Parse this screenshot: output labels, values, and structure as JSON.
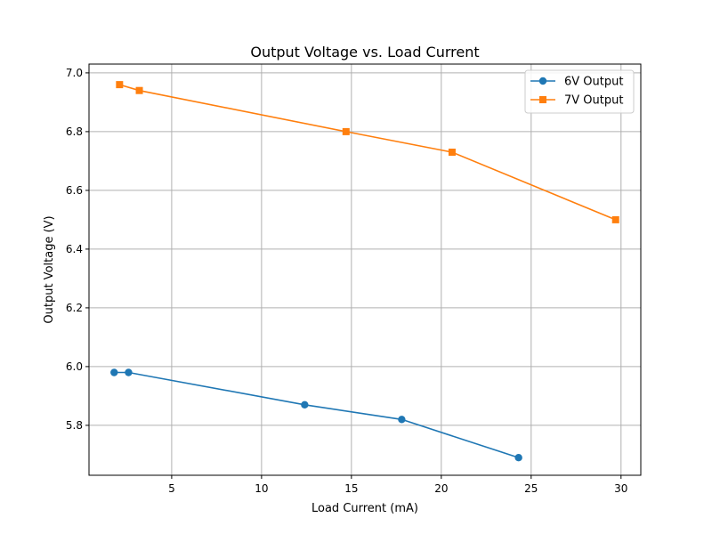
{
  "chart_data": {
    "type": "line",
    "title": "Output Voltage vs. Load Current",
    "xlabel": "Load Current (mA)",
    "ylabel": "Output Voltage (V)",
    "xlim": [
      0.4,
      31.1
    ],
    "ylim": [
      5.63,
      7.03
    ],
    "xticks": [
      5,
      10,
      15,
      20,
      25,
      30
    ],
    "yticks": [
      5.8,
      6.0,
      6.2,
      6.4,
      6.6,
      6.8,
      7.0
    ],
    "xtick_labels": [
      "5",
      "10",
      "15",
      "20",
      "25",
      "30"
    ],
    "ytick_labels": [
      "5.8",
      "6.0",
      "6.2",
      "6.4",
      "6.6",
      "6.8",
      "7.0"
    ],
    "grid": true,
    "legend_position": "top-right",
    "series": [
      {
        "name": "6V Output",
        "color": "#1f77b4",
        "marker": "circle",
        "x": [
          1.8,
          2.6,
          12.4,
          17.8,
          24.3
        ],
        "y": [
          5.98,
          5.98,
          5.87,
          5.82,
          5.69
        ]
      },
      {
        "name": "7V Output",
        "color": "#ff7f0e",
        "marker": "square",
        "x": [
          2.1,
          3.2,
          14.7,
          20.6,
          29.7
        ],
        "y": [
          6.96,
          6.94,
          6.8,
          6.73,
          6.5
        ]
      }
    ]
  }
}
